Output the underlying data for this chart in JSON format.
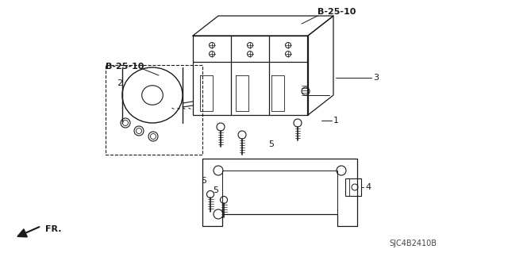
{
  "bg_color": "#ffffff",
  "part_code": "SJC4B2410B",
  "fr_label": "FR.",
  "lc": "#1a1a1a",
  "lw": 0.9,
  "labels": {
    "B25_top": "B-25-10",
    "B25_left": "B-25-10"
  }
}
